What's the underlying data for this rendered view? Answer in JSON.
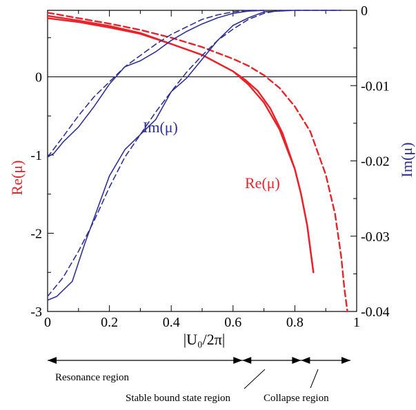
{
  "chart_data": {
    "type": "line",
    "xlabel": "|U₀/2π|",
    "xlim": [
      0,
      1
    ],
    "x_ticks": [
      "0",
      "0.2",
      "0.4",
      "0.6",
      "0.8",
      "1"
    ],
    "left_axis": {
      "label": "Re(μ)",
      "color": "#e8232a",
      "ylim": [
        -3,
        0.85
      ],
      "ticks": [
        "-3",
        "-2",
        "-1",
        "0"
      ]
    },
    "right_axis": {
      "label": "Im(μ)",
      "color": "#2e3192",
      "ylim": [
        -0.04,
        0
      ],
      "ticks": [
        "-0.04",
        "-0.03",
        "-0.02",
        "-0.01",
        "0"
      ]
    },
    "annotations": {
      "re": "Re(μ)",
      "im": "Im(μ)"
    },
    "series": [
      {
        "axis": "left",
        "style": "solid",
        "color": "#e8232a",
        "x": [
          0,
          0.1,
          0.2,
          0.3,
          0.4,
          0.5,
          0.6,
          0.65,
          0.7,
          0.75,
          0.8,
          0.82,
          0.84,
          0.85,
          0.86
        ],
        "y": [
          0.78,
          0.72,
          0.65,
          0.56,
          0.42,
          0.28,
          0.07,
          -0.1,
          -0.33,
          -0.67,
          -1.18,
          -1.5,
          -1.9,
          -2.2,
          -2.5
        ]
      },
      {
        "axis": "left",
        "style": "solid",
        "color": "#e8232a",
        "x": [
          0,
          0.1,
          0.2,
          0.3,
          0.4,
          0.5,
          0.6,
          0.64,
          0.68,
          0.72,
          0.76,
          0.8,
          0.82,
          0.84,
          0.85,
          0.86
        ],
        "y": [
          0.75,
          0.7,
          0.63,
          0.55,
          0.42,
          0.28,
          0.07,
          -0.04,
          -0.18,
          -0.4,
          -0.72,
          -1.18,
          -1.5,
          -1.9,
          -2.2,
          -2.5
        ]
      },
      {
        "axis": "left",
        "style": "dashed",
        "color": "#e8232a",
        "x": [
          0,
          0.1,
          0.2,
          0.3,
          0.4,
          0.5,
          0.6,
          0.65,
          0.7,
          0.75,
          0.8,
          0.85,
          0.9,
          0.93,
          0.95,
          0.96,
          0.97
        ],
        "y": [
          0.82,
          0.75,
          0.68,
          0.6,
          0.5,
          0.38,
          0.23,
          0.14,
          0.02,
          -0.14,
          -0.38,
          -0.7,
          -1.25,
          -1.75,
          -2.3,
          -2.7,
          -3.0
        ]
      },
      {
        "axis": "right",
        "style": "solid",
        "color": "#2e3192",
        "x": [
          0,
          0.02,
          0.05,
          0.1,
          0.15,
          0.2,
          0.25,
          0.3,
          0.35,
          0.4,
          0.45,
          0.5,
          0.55,
          0.6,
          0.65,
          0.7
        ],
        "y": [
          -0.0195,
          -0.019,
          -0.0175,
          -0.0155,
          -0.0128,
          -0.0098,
          -0.0075,
          -0.0067,
          -0.0055,
          -0.004,
          -0.0028,
          -0.0018,
          -0.001,
          -0.0004,
          -0.0001,
          0
        ]
      },
      {
        "axis": "right",
        "style": "solid",
        "color": "#2e3192",
        "x": [
          0,
          0.03,
          0.08,
          0.12,
          0.16,
          0.2,
          0.25,
          0.3,
          0.35,
          0.4,
          0.45,
          0.5,
          0.55,
          0.6,
          0.65,
          0.7,
          0.8,
          0.95
        ],
        "y": [
          -0.0385,
          -0.038,
          -0.036,
          -0.031,
          -0.0265,
          -0.022,
          -0.0185,
          -0.0165,
          -0.0145,
          -0.0108,
          -0.009,
          -0.0065,
          -0.004,
          -0.002,
          -0.001,
          -0.0002,
          0,
          0
        ]
      },
      {
        "axis": "right",
        "style": "dashed",
        "color": "#2e3192",
        "x": [
          0,
          0.05,
          0.1,
          0.15,
          0.2,
          0.25,
          0.3,
          0.35,
          0.4,
          0.45,
          0.5,
          0.55,
          0.6,
          0.65,
          0.7
        ],
        "y": [
          -0.0195,
          -0.0168,
          -0.014,
          -0.0115,
          -0.0095,
          -0.0075,
          -0.006,
          -0.0045,
          -0.0032,
          -0.0022,
          -0.0012,
          -0.0006,
          -0.0002,
          0,
          0
        ]
      },
      {
        "axis": "right",
        "style": "dashed",
        "color": "#2e3192",
        "x": [
          0,
          0.05,
          0.1,
          0.15,
          0.2,
          0.25,
          0.3,
          0.35,
          0.4,
          0.45,
          0.5,
          0.55,
          0.6,
          0.65,
          0.7,
          0.75,
          0.8,
          0.95
        ],
        "y": [
          -0.038,
          -0.0355,
          -0.032,
          -0.028,
          -0.0235,
          -0.0195,
          -0.0165,
          -0.0135,
          -0.0108,
          -0.0082,
          -0.006,
          -0.004,
          -0.0025,
          -0.0012,
          -0.0004,
          0,
          0,
          0
        ]
      }
    ],
    "regions": [
      {
        "label": "Resonance region",
        "from": 0,
        "to": 0.63
      },
      {
        "label": "Stable bound state region",
        "from": 0.63,
        "to": 0.82
      },
      {
        "label": "Collapse region",
        "from": 0.82,
        "to": 0.98
      }
    ]
  }
}
